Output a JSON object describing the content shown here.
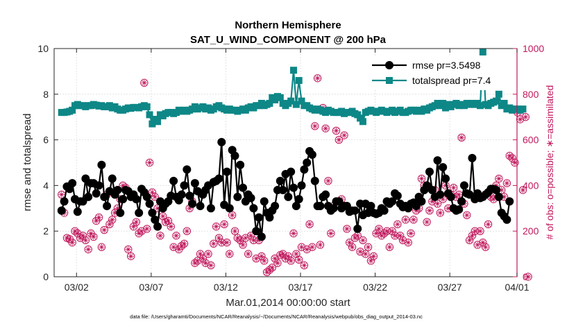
{
  "chart_data": {
    "type": "line",
    "title": [
      "Northern Hemisphere",
      "SAT_U_WIND_COMPONENT @ 200 hPa"
    ],
    "xlabel": "Mar.01,2014 00:00:00 start",
    "ylabel_left": "rmse and totalspread",
    "ylabel_right": "# of obs: o=possible; ∗=assimilated",
    "footer": "data file: /Users/gharamti/Documents/NCAR/Reanalysis/~/Documents/NCAR/Reanalysis/webpub/obs_diag_output_2014-03.nc",
    "xlim": [
      0.5,
      31.5
    ],
    "ylim_left": [
      0,
      10
    ],
    "ylim_right": [
      0,
      1000
    ],
    "x_ticks": [
      {
        "x": 2,
        "label": "03/02"
      },
      {
        "x": 7,
        "label": "03/07"
      },
      {
        "x": 12,
        "label": "03/12"
      },
      {
        "x": 17,
        "label": "03/17"
      },
      {
        "x": 22,
        "label": "03/22"
      },
      {
        "x": 27,
        "label": "03/27"
      },
      {
        "x": 32,
        "label": "04/01"
      }
    ],
    "y_ticks_left": [
      "0",
      "2",
      "4",
      "6",
      "8",
      "10"
    ],
    "y_ticks_right": [
      "0",
      "200",
      "400",
      "600",
      "800",
      "1000"
    ],
    "legend": [
      {
        "label": "rmse pr=3.5498",
        "color": "#000000",
        "marker": "circle"
      },
      {
        "label": "totalspread pr=7.4",
        "color": "#0e8787",
        "marker": "square"
      }
    ],
    "colors": {
      "rmse": "#000000",
      "totalspread": "#0e8787",
      "obs": "#c0185c",
      "axis": "#262626"
    },
    "series": [
      {
        "name": "rmse",
        "values": [
          2.9,
          3.3,
          3.95,
          3.85,
          4.1,
          3.4,
          2.85,
          3.3,
          3.3,
          4.3,
          3.5,
          4.1,
          4.1,
          3.65,
          4.0,
          4.9,
          3.5,
          3.1,
          3.75,
          4.3,
          3.6,
          3.8,
          2.8,
          3.4,
          3.8,
          3.75,
          3.5,
          3.6,
          3.4,
          2.8,
          3.85,
          3.7,
          3.5,
          3.2,
          2.8,
          2.5,
          2.2,
          3.3,
          3.0,
          3.2,
          3.3,
          3.55,
          4.2,
          3.5,
          3.35,
          3.6,
          4.0,
          4.7,
          3.55,
          3.2,
          4.1,
          3.75,
          3.1,
          3.6,
          3.8,
          4.0,
          3.0,
          4.15,
          4.2,
          4.3,
          5.9,
          3.15,
          4.6,
          3.0,
          5.55,
          5.3,
          3.5,
          4.9,
          3.9,
          3.3,
          3.6,
          3.45,
          3.0,
          2.0,
          2.6,
          1.75,
          3.3,
          2.8,
          2.6,
          2.9,
          3.1,
          3.8,
          4.2,
          3.8,
          4.5,
          3.5,
          4.6,
          3.9,
          3.1,
          3.4,
          4.0,
          4.7,
          5.0,
          5.5,
          5.35,
          4.2,
          3.1,
          3.1,
          3.5,
          3.6,
          3.1,
          2.9,
          3.0,
          3.3,
          3.3,
          3.0,
          3.1,
          3.1,
          2.85,
          2.9,
          2.9,
          2.1,
          3.2,
          2.7,
          3.2,
          2.8,
          3.1,
          2.8,
          2.75,
          2.8,
          3.0,
          2.9,
          3.3,
          3.2,
          3.3,
          3.65,
          3.55,
          3.2,
          3.05,
          3.1,
          3.0,
          3.2,
          3.25,
          3.1,
          3.5,
          3.3,
          3.8,
          4.0,
          4.6,
          3.8,
          3.5,
          5.1,
          3.6,
          4.8,
          4.3,
          3.65,
          3.5,
          3.0,
          2.9,
          2.95,
          3.3,
          4.0,
          3.65,
          3.6,
          5.2,
          3.4,
          3.65,
          3.45,
          3.5,
          3.6,
          3.7,
          3.85,
          3.85,
          3.8,
          3.5,
          2.8,
          2.65,
          2.5,
          3.3
        ]
      },
      {
        "name": "totalspread",
        "values": [
          7.2,
          7.2,
          7.22,
          7.25,
          7.3,
          7.5,
          7.55,
          7.5,
          7.5,
          7.45,
          7.5,
          7.5,
          7.55,
          7.52,
          7.48,
          7.5,
          7.45,
          7.45,
          7.5,
          7.4,
          7.45,
          7.35,
          7.3,
          7.3,
          7.35,
          7.4,
          7.38,
          7.42,
          7.42,
          7.4,
          7.45,
          7.5,
          7.45,
          7.1,
          6.7,
          6.9,
          6.8,
          7.1,
          7.05,
          7.15,
          7.2,
          7.2,
          7.15,
          7.2,
          7.3,
          7.25,
          7.3,
          7.25,
          7.3,
          7.35,
          7.45,
          7.35,
          7.4,
          7.45,
          7.35,
          7.4,
          7.3,
          7.35,
          7.45,
          7.5,
          7.4,
          7.35,
          7.3,
          7.35,
          7.3,
          7.3,
          7.25,
          7.3,
          7.35,
          7.3,
          7.4,
          7.45,
          7.4,
          7.5,
          7.5,
          7.6,
          7.5,
          7.55,
          7.6,
          7.85,
          7.75,
          7.9,
          7.85,
          7.6,
          7.5,
          7.6,
          7.7,
          9.05,
          7.55,
          8.6,
          7.7,
          7.5,
          7.5,
          7.4,
          7.35,
          7.3,
          7.35,
          7.3,
          7.25,
          7.2,
          7.3,
          7.25,
          7.2,
          7.2,
          7.2,
          7.25,
          7.15,
          7.2,
          7.2,
          7.25,
          7.15,
          7.1,
          6.95,
          6.8,
          7.2,
          7.25,
          7.3,
          7.25,
          7.2,
          7.25,
          7.3,
          7.25,
          7.2,
          7.25,
          7.3,
          7.2,
          7.25,
          7.3,
          7.2,
          7.2,
          7.25,
          7.3,
          7.3,
          7.25,
          7.3,
          7.25,
          7.35,
          7.3,
          7.4,
          7.45,
          7.5,
          7.6,
          7.5,
          7.6,
          7.4,
          7.55,
          7.45,
          7.55,
          7.6,
          7.5,
          7.55,
          7.5,
          7.6,
          7.55,
          7.6,
          7.55,
          7.6,
          7.5,
          9.85,
          7.55,
          7.5,
          7.6,
          7.65,
          7.7,
          8.0,
          7.5,
          7.6,
          7.35,
          7.4,
          7.3,
          7.35,
          7.35,
          7.3,
          7.35
        ]
      },
      {
        "name": "obs_possible",
        "values": [
          360,
          280,
          170,
          165,
          150,
          200,
          190,
          170,
          180,
          160,
          120,
          190,
          175,
          245,
          260,
          130,
          205,
          360,
          230,
          250,
          280,
          300,
          340,
          400,
          390,
          120,
          90,
          220,
          240,
          190,
          200,
          850,
          210,
          500,
          370,
          350,
          300,
          180,
          265,
          240,
          245,
          220,
          130,
          180,
          120,
          135,
          145,
          200,
          300,
          330,
          60,
          70,
          100,
          80,
          60,
          100,
          50,
          145,
          220,
          170,
          150,
          230,
          150,
          100,
          270,
          200,
          170,
          160,
          140,
          170,
          100,
          180,
          160,
          80,
          160,
          90,
          70,
          20,
          30,
          40,
          80,
          60,
          95,
          100,
          80,
          90,
          70,
          190,
          100,
          75,
          130,
          50,
          120,
          230,
          130,
          660,
          870,
          140,
          740,
          650,
          420,
          190,
          310,
          640,
          600,
          340,
          620,
          210,
          150,
          130,
          170,
          180,
          110,
          160,
          100,
          130,
          70,
          90,
          190,
          210,
          180,
          190,
          200,
          130,
          200,
          180,
          230,
          180,
          160,
          250,
          150,
          190,
          250,
          290,
          300,
          430,
          400,
          240,
          290,
          330,
          380,
          320,
          280,
          340,
          400,
          300,
          360,
          390,
          350,
          360,
          610,
          320,
          270,
          160,
          180,
          200,
          140,
          200,
          150,
          130,
          230,
          350,
          340,
          400,
          430,
          380,
          350,
          410,
          530,
          520,
          500,
          720,
          690,
          380,
          700,
          0
        ]
      },
      {
        "name": "obs_assimilated",
        "values": [
          360,
          280,
          170,
          165,
          150,
          200,
          190,
          170,
          180,
          160,
          120,
          190,
          175,
          245,
          260,
          130,
          205,
          360,
          230,
          250,
          280,
          300,
          340,
          400,
          390,
          120,
          90,
          220,
          240,
          190,
          200,
          850,
          210,
          500,
          370,
          350,
          300,
          180,
          265,
          240,
          245,
          220,
          130,
          180,
          120,
          135,
          145,
          200,
          300,
          330,
          60,
          70,
          100,
          80,
          60,
          100,
          50,
          145,
          220,
          170,
          150,
          230,
          150,
          100,
          270,
          200,
          170,
          160,
          140,
          170,
          100,
          180,
          160,
          80,
          160,
          90,
          70,
          20,
          30,
          40,
          80,
          60,
          95,
          100,
          80,
          90,
          70,
          190,
          100,
          75,
          130,
          50,
          120,
          230,
          130,
          660,
          870,
          140,
          740,
          650,
          420,
          190,
          310,
          640,
          600,
          340,
          620,
          210,
          150,
          130,
          170,
          180,
          110,
          160,
          100,
          130,
          70,
          90,
          190,
          210,
          180,
          190,
          200,
          130,
          200,
          180,
          230,
          180,
          160,
          250,
          150,
          190,
          250,
          290,
          300,
          430,
          400,
          240,
          290,
          330,
          380,
          320,
          280,
          340,
          400,
          300,
          360,
          390,
          350,
          360,
          610,
          320,
          270,
          160,
          180,
          200,
          140,
          200,
          150,
          130,
          230,
          350,
          340,
          400,
          430,
          380,
          350,
          410,
          530,
          520,
          500,
          720,
          690,
          380,
          700,
          0
        ]
      }
    ]
  }
}
